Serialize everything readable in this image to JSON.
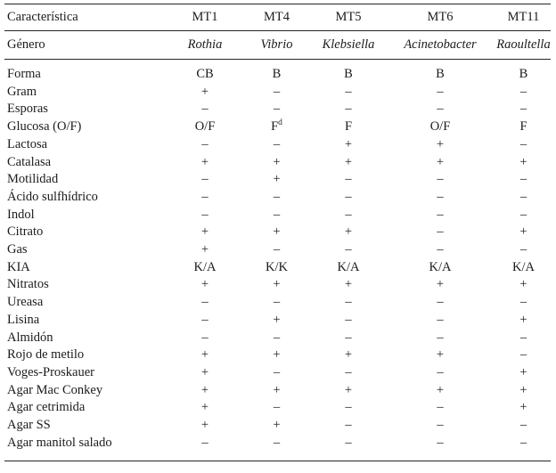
{
  "accent_colors": {
    "text": "#1b1b1b",
    "rule": "#252525",
    "background": "#ffffff"
  },
  "table": {
    "header": {
      "label": "Característica",
      "columns": [
        "MT1",
        "MT4",
        "MT5",
        "MT6",
        "MT11"
      ]
    },
    "genus": {
      "label": "Género",
      "values": [
        "Rothia",
        "Vibrio",
        "Klebsiella",
        "Acinetobacter",
        "Raoultella"
      ]
    },
    "rows": [
      {
        "label": "Forma",
        "values": [
          "CB",
          "B",
          "B",
          "B",
          "B"
        ]
      },
      {
        "label": "Gram",
        "values": [
          "+",
          "–",
          "–",
          "–",
          "–"
        ]
      },
      {
        "label": "Esporas",
        "values": [
          "–",
          "–",
          "–",
          "–",
          "–"
        ]
      },
      {
        "label": "Glucosa (O/F)",
        "values": [
          "O/F",
          "F^d",
          "F",
          "O/F",
          "F"
        ]
      },
      {
        "label": "Lactosa",
        "values": [
          "–",
          "–",
          "+",
          "+",
          "–"
        ]
      },
      {
        "label": "Catalasa",
        "values": [
          "+",
          "+",
          "+",
          "+",
          "+"
        ]
      },
      {
        "label": "Motilidad",
        "values": [
          "–",
          "+",
          "–",
          "–",
          "–"
        ]
      },
      {
        "label": "Ácido sulfhídrico",
        "values": [
          "–",
          "–",
          "–",
          "–",
          "–"
        ]
      },
      {
        "label": "Indol",
        "values": [
          "–",
          "–",
          "–",
          "–",
          "–"
        ]
      },
      {
        "label": "Citrato",
        "values": [
          "+",
          "+",
          "+",
          "–",
          "+"
        ]
      },
      {
        "label": "Gas",
        "values": [
          "+",
          "–",
          "–",
          "–",
          "–"
        ]
      },
      {
        "label": "KIA",
        "values": [
          "K/A",
          "K/K",
          "K/A",
          "K/A",
          "K/A"
        ]
      },
      {
        "label": "Nitratos",
        "values": [
          "+",
          "+",
          "+",
          "+",
          "+"
        ]
      },
      {
        "label": "Ureasa",
        "values": [
          "–",
          "–",
          "–",
          "–",
          "–"
        ]
      },
      {
        "label": "Lisina",
        "values": [
          "–",
          "+",
          "–",
          "–",
          "+"
        ]
      },
      {
        "label": "Almidón",
        "values": [
          "–",
          "–",
          "–",
          "–",
          "–"
        ]
      },
      {
        "label": "Rojo de metilo",
        "values": [
          "+",
          "+",
          "+",
          "+",
          "–"
        ]
      },
      {
        "label": "Voges-Proskauer",
        "values": [
          "+",
          "–",
          "–",
          "–",
          "+"
        ]
      },
      {
        "label": "Agar Mac Conkey",
        "values": [
          "+",
          "+",
          "+",
          "+",
          "+"
        ]
      },
      {
        "label": "Agar cetrimida",
        "values": [
          "+",
          "–",
          "–",
          "–",
          "+"
        ]
      },
      {
        "label": "Agar SS",
        "values": [
          "+",
          "+",
          "–",
          "–",
          "–"
        ]
      },
      {
        "label": "Agar manitol salado",
        "values": [
          "–",
          "–",
          "–",
          "–",
          "–"
        ]
      }
    ]
  },
  "chart_data": {
    "type": "table",
    "columns": [
      "Característica",
      "MT1",
      "MT4",
      "MT5",
      "MT6",
      "MT11"
    ],
    "rows": [
      [
        "Género",
        "Rothia",
        "Vibrio",
        "Klebsiella",
        "Acinetobacter",
        "Raoultella"
      ],
      [
        "Forma",
        "CB",
        "B",
        "B",
        "B",
        "B"
      ],
      [
        "Gram",
        "+",
        "–",
        "–",
        "–",
        "–"
      ],
      [
        "Esporas",
        "–",
        "–",
        "–",
        "–",
        "–"
      ],
      [
        "Glucosa (O/F)",
        "O/F",
        "F^d",
        "F",
        "O/F",
        "F"
      ],
      [
        "Lactosa",
        "–",
        "–",
        "+",
        "+",
        "–"
      ],
      [
        "Catalasa",
        "+",
        "+",
        "+",
        "+",
        "+"
      ],
      [
        "Motilidad",
        "–",
        "+",
        "–",
        "–",
        "–"
      ],
      [
        "Ácido sulfhídrico",
        "–",
        "–",
        "–",
        "–",
        "–"
      ],
      [
        "Indol",
        "–",
        "–",
        "–",
        "–",
        "–"
      ],
      [
        "Citrato",
        "+",
        "+",
        "+",
        "–",
        "+"
      ],
      [
        "Gas",
        "+",
        "–",
        "–",
        "–",
        "–"
      ],
      [
        "KIA",
        "K/A",
        "K/K",
        "K/A",
        "K/A",
        "K/A"
      ],
      [
        "Nitratos",
        "+",
        "+",
        "+",
        "+",
        "+"
      ],
      [
        "Ureasa",
        "–",
        "–",
        "–",
        "–",
        "–"
      ],
      [
        "Lisina",
        "–",
        "+",
        "–",
        "–",
        "+"
      ],
      [
        "Almidón",
        "–",
        "–",
        "–",
        "–",
        "–"
      ],
      [
        "Rojo de metilo",
        "+",
        "+",
        "+",
        "+",
        "–"
      ],
      [
        "Voges-Proskauer",
        "+",
        "–",
        "–",
        "–",
        "+"
      ],
      [
        "Agar Mac Conkey",
        "+",
        "+",
        "+",
        "+",
        "+"
      ],
      [
        "Agar cetrimida",
        "+",
        "–",
        "–",
        "–",
        "+"
      ],
      [
        "Agar SS",
        "+",
        "+",
        "–",
        "–",
        "–"
      ],
      [
        "Agar manitol salado",
        "–",
        "–",
        "–",
        "–",
        "–"
      ]
    ],
    "layout": {
      "grid": "horizontal rules only: top, below header, below genus row, bottom",
      "first_column_align": "left",
      "value_columns_align": "center",
      "genus_row_style": "italic"
    }
  }
}
